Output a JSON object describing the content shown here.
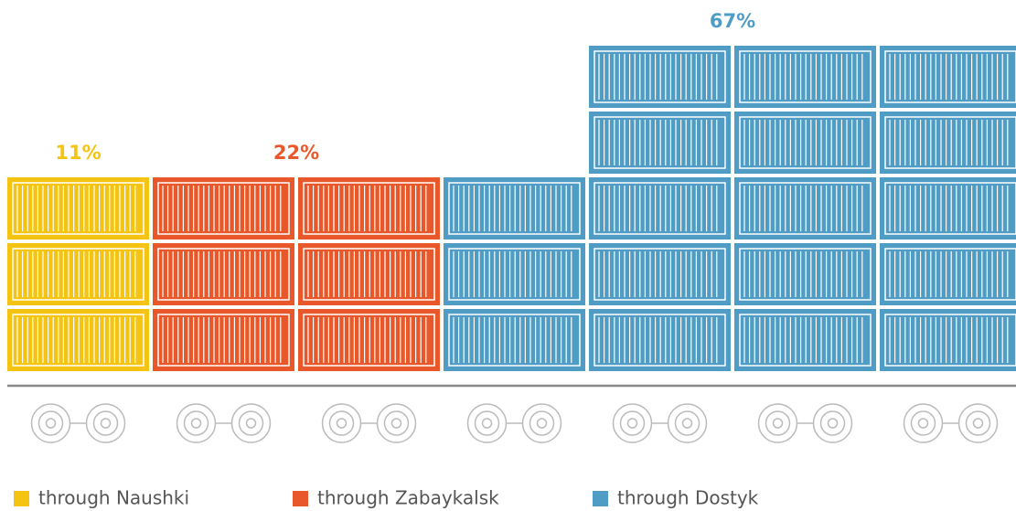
{
  "chart_data": {
    "type": "pictograph",
    "series": [
      {
        "name": "through Naushki",
        "color": "#f5c312",
        "values": [
          11
        ],
        "value_labels": [
          "11%"
        ]
      },
      {
        "name": "through Zabaykalsk",
        "color": "#e8582a",
        "values": [
          22
        ],
        "value_labels": [
          "22%"
        ]
      },
      {
        "name": "through Dostyk",
        "color": "#4f9dc4",
        "values": [
          67
        ],
        "value_labels": [
          "67%"
        ]
      }
    ]
  }
}
